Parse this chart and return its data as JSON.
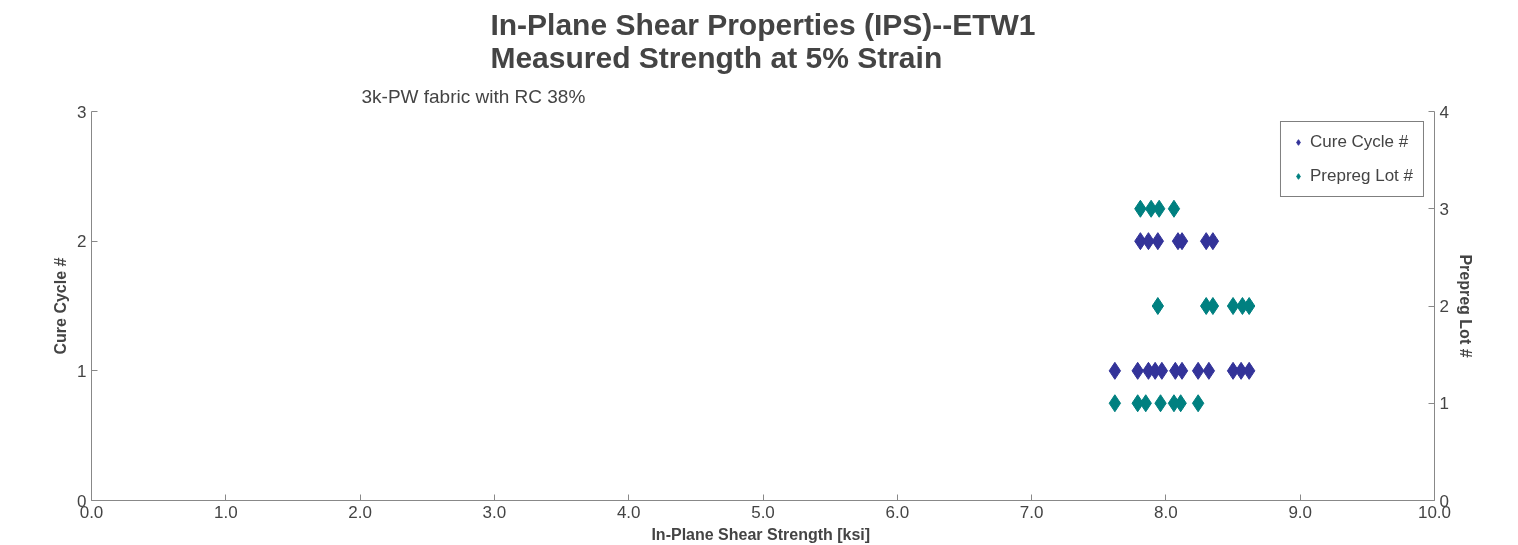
{
  "chart_data": {
    "type": "scatter",
    "title": "In-Plane Shear Properties (IPS)--ETW1\nMeasured Strength at 5% Strain",
    "subtitle": "3k-PW fabric with RC 38%",
    "xlabel": "In-Plane  Shear Strength [ksi]",
    "ylabel": "Cure Cycle #",
    "y2label": "Prepreg Lot #",
    "xlim": [
      0,
      10
    ],
    "ylim": [
      0,
      3
    ],
    "y2lim": [
      0,
      4
    ],
    "xticks": [
      {
        "value": 0,
        "label": "0.0"
      },
      {
        "value": 1,
        "label": "1.0"
      },
      {
        "value": 2,
        "label": "2.0"
      },
      {
        "value": 3,
        "label": "3.0"
      },
      {
        "value": 4,
        "label": "4.0"
      },
      {
        "value": 5,
        "label": "5.0"
      },
      {
        "value": 6,
        "label": "6.0"
      },
      {
        "value": 7,
        "label": "7.0"
      },
      {
        "value": 8,
        "label": "8.0"
      },
      {
        "value": 9,
        "label": "9.0"
      },
      {
        "value": 10,
        "label": "10.0"
      }
    ],
    "yticks": [
      0,
      1,
      2,
      3
    ],
    "y2ticks": [
      0,
      1,
      2,
      3,
      4
    ],
    "grid": false,
    "legend": "top right",
    "marker": "diamond",
    "series": [
      {
        "name": "Cure Cycle #",
        "color": "#333399",
        "x": [
          7.81,
          7.87,
          7.94,
          8.09,
          8.12,
          8.3,
          8.35,
          7.62,
          7.79,
          7.87,
          7.92,
          7.97,
          8.07,
          8.12,
          8.24,
          8.32,
          8.5,
          8.56,
          8.62
        ],
        "values": [
          2,
          2,
          2,
          2,
          2,
          2,
          2,
          1,
          1,
          1,
          1,
          1,
          1,
          1,
          1,
          1,
          1,
          1,
          1
        ]
      },
      {
        "name": "Prepreg Lot #",
        "color": "#008080",
        "axis": "y2",
        "x": [
          7.81,
          7.89,
          7.95,
          8.06,
          7.94,
          8.3,
          8.35,
          8.5,
          8.57,
          8.62,
          7.62,
          7.79,
          7.85,
          7.96,
          8.06,
          8.11,
          8.24
        ],
        "values": [
          3,
          3,
          3,
          3,
          2,
          2,
          2,
          2,
          2,
          2,
          1,
          1,
          1,
          1,
          1,
          1,
          1
        ]
      }
    ]
  }
}
